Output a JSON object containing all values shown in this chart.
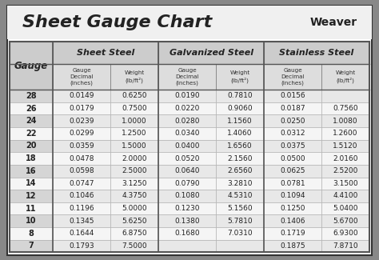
{
  "title": "Sheet Gauge Chart",
  "bg_outer": "#888888",
  "bg_inner": "#ffffff",
  "header_bg": "#dddddd",
  "row_alt_bg": "#e8e8e8",
  "row_normal_bg": "#f5f5f5",
  "border_color": "#555555",
  "section_headers": [
    "Sheet Steel",
    "Galvanized Steel",
    "Stainless Steel"
  ],
  "col_sub_headers": [
    "Gauge\nDecimal\n(inches)",
    "Weight\n(lb/ft²)",
    "Gauge\nDecimal\n(inches)",
    "Weight\n(lb/ft²)",
    "Gauge\nDecimal\n(inches)",
    "Weight\n(lb/ft²)"
  ],
  "gauges": [
    28,
    26,
    24,
    22,
    20,
    18,
    16,
    14,
    12,
    11,
    10,
    8,
    7
  ],
  "sheet_steel": [
    [
      "0.0149",
      "0.6250"
    ],
    [
      "0.0179",
      "0.7500"
    ],
    [
      "0.0239",
      "1.0000"
    ],
    [
      "0.0299",
      "1.2500"
    ],
    [
      "0.0359",
      "1.5000"
    ],
    [
      "0.0478",
      "2.0000"
    ],
    [
      "0.0598",
      "2.5000"
    ],
    [
      "0.0747",
      "3.1250"
    ],
    [
      "0.1046",
      "4.3750"
    ],
    [
      "0.1196",
      "5.0000"
    ],
    [
      "0.1345",
      "5.6250"
    ],
    [
      "0.1644",
      "6.8750"
    ],
    [
      "0.1793",
      "7.5000"
    ]
  ],
  "galvanized_steel": [
    [
      "0.0190",
      "0.7810"
    ],
    [
      "0.0220",
      "0.9060"
    ],
    [
      "0.0280",
      "1.1560"
    ],
    [
      "0.0340",
      "1.4060"
    ],
    [
      "0.0400",
      "1.6560"
    ],
    [
      "0.0520",
      "2.1560"
    ],
    [
      "0.0640",
      "2.6560"
    ],
    [
      "0.0790",
      "3.2810"
    ],
    [
      "0.1080",
      "4.5310"
    ],
    [
      "0.1230",
      "5.1560"
    ],
    [
      "0.1380",
      "5.7810"
    ],
    [
      "0.1680",
      "7.0310"
    ],
    [
      "",
      ""
    ]
  ],
  "stainless_steel": [
    [
      "0.0156",
      ""
    ],
    [
      "0.0187",
      "0.7560"
    ],
    [
      "0.0250",
      "1.0080"
    ],
    [
      "0.0312",
      "1.2600"
    ],
    [
      "0.0375",
      "1.5120"
    ],
    [
      "0.0500",
      "2.0160"
    ],
    [
      "0.0625",
      "2.5200"
    ],
    [
      "0.0781",
      "3.1500"
    ],
    [
      "0.1094",
      "4.4100"
    ],
    [
      "0.1250",
      "5.0400"
    ],
    [
      "0.1406",
      "5.6700"
    ],
    [
      "0.1719",
      "6.9300"
    ],
    [
      "0.1875",
      "7.8710"
    ]
  ],
  "font_title_size": 16,
  "font_section_size": 8,
  "font_data_size": 6.5,
  "font_gauge_size": 7
}
